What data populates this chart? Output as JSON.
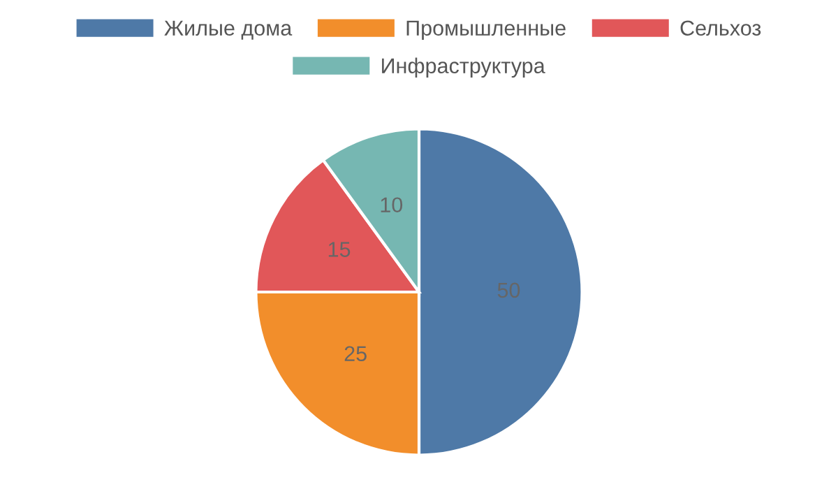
{
  "chart_data": {
    "type": "pie",
    "categories": [
      "Жилые дома",
      "Промышленные",
      "Сельхоз",
      "Инфраструктура"
    ],
    "values": [
      50,
      25,
      15,
      10
    ],
    "colors": [
      "#4e79a7",
      "#f28e2b",
      "#e15759",
      "#76b7b2"
    ],
    "data_labels": true,
    "legend": "top"
  }
}
